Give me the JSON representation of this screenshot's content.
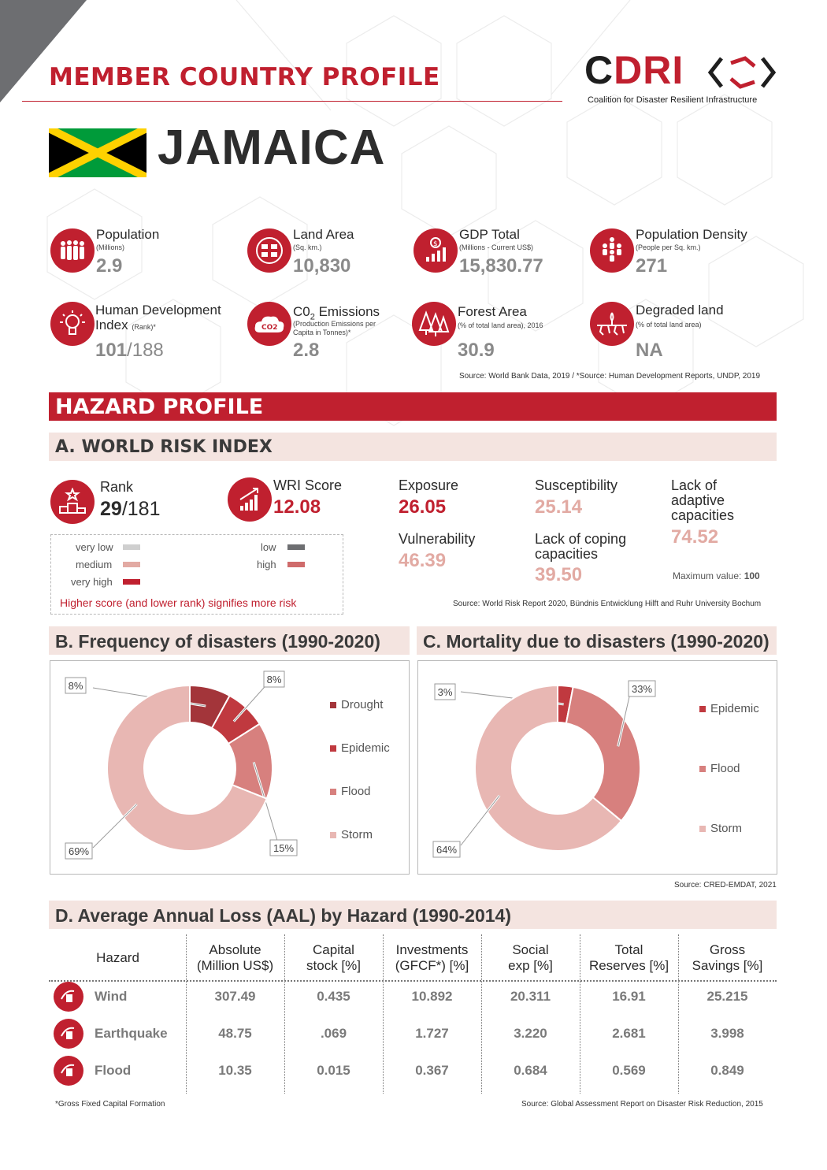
{
  "header": {
    "title": "MEMBER COUNTRY PROFILE",
    "logo_letters_dark": "C",
    "logo_letters_red": "DRI",
    "logo_subtitle": "Coalition for Disaster Resilient Infrastructure"
  },
  "country": {
    "name": "JAMAICA"
  },
  "stats": {
    "population": {
      "label": "Population",
      "unit": "(Millions)",
      "value": "2.9"
    },
    "land_area": {
      "label": "Land Area",
      "unit": "(Sq. km.)",
      "value": "10,830"
    },
    "gdp": {
      "label": "GDP Total",
      "unit": "(Millions - Current US$)",
      "value": "15,830.77"
    },
    "density": {
      "label": "Population Density",
      "unit": "(People per Sq. km.)",
      "value": "271"
    },
    "hdi": {
      "label1": "Human Development",
      "label2": "Index",
      "unit": "(Rank)*",
      "value": "101",
      "value_total": "/188"
    },
    "co2": {
      "label_main": "C0",
      "label_sub": "2",
      "label_rest": " Emissions",
      "unit1": "(Production Emissions per",
      "unit2": "Capita in Tonnes)*",
      "value": "2.8",
      "icon_text": "CO2"
    },
    "forest": {
      "label": "Forest Area",
      "unit": "(% of total land area), 2016",
      "value": "30.9"
    },
    "degraded": {
      "label": "Degraded land",
      "unit": "(% of total land area)",
      "value": "NA"
    },
    "source": "Source: World Bank Data, 2019 / *Source: Human Development Reports, UNDP, 2019"
  },
  "hazard": {
    "title": "HAZARD PROFILE",
    "wri": {
      "title": "A. WORLD RISK INDEX",
      "rank_label": "Rank",
      "rank_value": "29",
      "rank_total": "/181",
      "score_label": "WRI Score",
      "score_value": "12.08",
      "exposure_label": "Exposure",
      "exposure_value": "26.05",
      "susceptibility_label": "Susceptibility",
      "susceptibility_value": "25.14",
      "lack_adaptive_label1": "Lack of",
      "lack_adaptive_label2": "adaptive",
      "lack_adaptive_label3": "capacities",
      "lack_adaptive_value": "74.52",
      "vulnerability_label": "Vulnerability",
      "vulnerability_value": "46.39",
      "lack_coping_label1": "Lack of coping",
      "lack_coping_label2": "capacities",
      "lack_coping_value": "39.50",
      "max_label": "Maximum value:",
      "max_value": "100",
      "legend": {
        "very_low": "very low",
        "low": "low",
        "medium": "medium",
        "high": "high",
        "very_high": "very high",
        "note": "Higher score (and lower rank) signifies more risk"
      },
      "colors": {
        "very_low": "#cfcfcf",
        "low": "#6d6e71",
        "medium": "#e2aaa3",
        "high": "#cf6b6b",
        "very_high": "#c0202f"
      },
      "source": "Source: World Risk Report 2020, Bündnis Entwicklung Hilft and Ruhr University Bochum"
    },
    "frequency_title": "B.  Frequency of disasters (1990-2020)",
    "mortality_title": "C.  Mortality due to disasters (1990-2020)",
    "charts_source": "Source: CRED-EMDAT, 2021",
    "aal": {
      "title": "D.  Average Annual Loss (AAL) by Hazard (1990-2014)",
      "headers": [
        [
          "Hazard",
          ""
        ],
        [
          "Absolute",
          "(Million US$)"
        ],
        [
          "Capital",
          "stock [%]"
        ],
        [
          "Investments",
          "(GFCF*) [%]"
        ],
        [
          "Social",
          "exp [%]"
        ],
        [
          "Total",
          "Reserves [%]"
        ],
        [
          "Gross",
          "Savings [%]"
        ]
      ],
      "rows": [
        {
          "hazard": "Wind",
          "icon": "wind-icon",
          "values": [
            "307.49",
            "0.435",
            "10.892",
            "20.311",
            "16.91",
            "25.215"
          ]
        },
        {
          "hazard": "Earthquake",
          "icon": "earthquake-icon",
          "values": [
            "48.75",
            ".069",
            "1.727",
            "3.220",
            "2.681",
            "3.998"
          ]
        },
        {
          "hazard": "Flood",
          "icon": "flood-icon",
          "values": [
            "10.35",
            "0.015",
            "0.367",
            "0.684",
            "0.569",
            "0.849"
          ]
        }
      ],
      "footnote": "*Gross Fixed Capital Formation",
      "source": "Source: Global Assessment Report on Disaster Risk Reduction, 2015"
    }
  },
  "chart_data": [
    {
      "type": "pie",
      "title": "B.  Frequency of disasters (1990-2020)",
      "donut": true,
      "categories": [
        "Drought",
        "Epidemic",
        "Flood",
        "Storm"
      ],
      "values": [
        8,
        8,
        15,
        69
      ],
      "labels": [
        "8%",
        "8%",
        "15%",
        "69%"
      ],
      "colors": [
        "#a3353a",
        "#c0393f",
        "#d7807e",
        "#e8b7b3"
      ],
      "legend": "right"
    },
    {
      "type": "pie",
      "title": "C.  Mortality due to disasters (1990-2020)",
      "donut": true,
      "categories": [
        "Epidemic",
        "Flood",
        "Storm"
      ],
      "values": [
        3,
        33,
        64
      ],
      "labels": [
        "3%",
        "33%",
        "64%"
      ],
      "colors": [
        "#c0393f",
        "#d7807e",
        "#e8b7b3"
      ],
      "legend": "right"
    }
  ]
}
